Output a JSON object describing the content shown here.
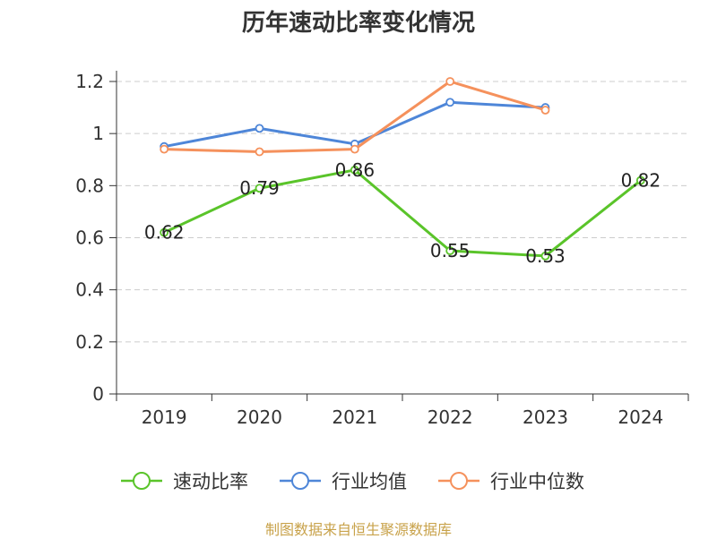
{
  "chart_data": {
    "type": "line",
    "title": "历年速动比率变化情况",
    "categories": [
      "2019",
      "2020",
      "2021",
      "2022",
      "2023",
      "2024"
    ],
    "ylim": [
      0,
      1.2
    ],
    "yticks": [
      "0",
      "0.2",
      "0.4",
      "0.6",
      "0.8",
      "1",
      "1.2"
    ],
    "grid": true,
    "legend_position": "bottom",
    "series": [
      {
        "name": "速动比率",
        "color": "#5ac42a",
        "values": [
          0.62,
          0.79,
          0.86,
          0.55,
          0.53,
          0.82
        ],
        "labels": [
          "0.62",
          "0.79",
          "0.86",
          "0.55",
          "0.53",
          "0.82"
        ]
      },
      {
        "name": "行业均值",
        "color": "#4e86d8",
        "values": [
          0.95,
          1.02,
          0.96,
          1.12,
          1.1,
          null
        ]
      },
      {
        "name": "行业中位数",
        "color": "#f5915c",
        "values": [
          0.94,
          0.93,
          0.94,
          1.2,
          1.09,
          null
        ]
      }
    ]
  },
  "source": "制图数据来自恒生聚源数据库"
}
